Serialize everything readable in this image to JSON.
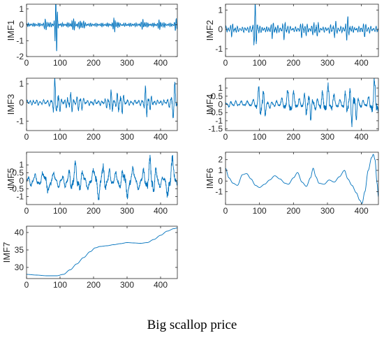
{
  "caption": "Big scallop price",
  "colors": {
    "line": "#0072BD",
    "axis": "#262626"
  },
  "chart_data": [
    {
      "type": "line",
      "ylabel": "IMF1",
      "xlim": [
        0,
        450
      ],
      "ylim": [
        -2,
        1.3
      ],
      "xticks": [
        0,
        100,
        200,
        300,
        400
      ],
      "yticks": [
        1,
        0,
        -1,
        -2
      ],
      "signal": {
        "kind": "osc",
        "period": 5,
        "base": 0.12,
        "bursts": [
          [
            88,
            2.0,
            5
          ],
          [
            60,
            0.3,
            8
          ],
          [
            140,
            0.3,
            10
          ],
          [
            165,
            0.45,
            6
          ],
          [
            265,
            0.55,
            6
          ],
          [
            350,
            0.4,
            6
          ],
          [
            400,
            0.25,
            8
          ],
          [
            445,
            0.3,
            6
          ]
        ]
      },
      "x": [
        0,
        88,
        89,
        165,
        265,
        350,
        450
      ],
      "y": [
        0,
        1.2,
        -2,
        0.45,
        0.55,
        0.4,
        0
      ]
    },
    {
      "type": "line",
      "ylabel": "IMF2",
      "xlim": [
        0,
        450
      ],
      "ylim": [
        -1.4,
        1.3
      ],
      "xticks": [
        0,
        100,
        200,
        300,
        400
      ],
      "yticks": [
        1,
        0,
        -1
      ],
      "signal": {
        "kind": "osc",
        "period": 7,
        "base": 0.15,
        "bursts": [
          [
            88,
            1.15,
            8
          ],
          [
            20,
            0.2,
            10
          ],
          [
            140,
            0.3,
            10
          ],
          [
            175,
            0.4,
            8
          ],
          [
            230,
            0.4,
            10
          ],
          [
            265,
            0.5,
            8
          ],
          [
            320,
            0.35,
            10
          ],
          [
            360,
            0.55,
            8
          ],
          [
            410,
            0.25,
            10
          ]
        ]
      },
      "x": [
        0,
        88,
        89,
        265,
        360,
        450
      ],
      "y": [
        0,
        1.1,
        -1.3,
        0.5,
        0.55,
        0
      ]
    },
    {
      "type": "line",
      "ylabel": "IMF3",
      "xlim": [
        0,
        450
      ],
      "ylim": [
        -1.5,
        1.3
      ],
      "xticks": [
        0,
        100,
        200,
        300,
        400
      ],
      "yticks": [
        1,
        0,
        -1
      ],
      "signal": {
        "kind": "osc",
        "period": 10,
        "base": 0.15,
        "bursts": [
          [
            88,
            1.3,
            10
          ],
          [
            130,
            0.5,
            10
          ],
          [
            160,
            0.55,
            8
          ],
          [
            250,
            0.6,
            10
          ],
          [
            280,
            0.75,
            10
          ],
          [
            360,
            0.9,
            10
          ],
          [
            440,
            1.1,
            10
          ]
        ]
      },
      "x": [
        0,
        88,
        89,
        280,
        360,
        440,
        450
      ],
      "y": [
        0,
        1.2,
        -1.3,
        0.75,
        0.9,
        1.1,
        -1.3
      ]
    },
    {
      "type": "line",
      "ylabel": "IMF4",
      "xlim": [
        0,
        450
      ],
      "ylim": [
        -1.6,
        1.6
      ],
      "xticks": [
        0,
        100,
        200,
        300,
        400
      ],
      "yticks": [
        1,
        0.5,
        0,
        -0.5,
        -1,
        -1.5
      ],
      "signal": {
        "kind": "osc",
        "period": 15,
        "base": 0.2,
        "bursts": [
          [
            105,
            1.2,
            14
          ],
          [
            190,
            0.8,
            20
          ],
          [
            245,
            0.9,
            16
          ],
          [
            300,
            1.0,
            20
          ],
          [
            370,
            1.2,
            20
          ],
          [
            440,
            1.4,
            15
          ]
        ]
      },
      "x": [
        0,
        105,
        245,
        370,
        440,
        450
      ],
      "y": [
        0,
        1.2,
        0.9,
        1.2,
        1.4,
        -1.5
      ]
    },
    {
      "type": "line",
      "ylabel": "IMF5",
      "xlim": [
        0,
        450
      ],
      "ylim": [
        -1.5,
        1.8
      ],
      "xticks": [
        0,
        100,
        200,
        300,
        400
      ],
      "yticks": [
        1,
        0.5,
        0,
        -0.5,
        -1
      ],
      "signal": {
        "kind": "osc",
        "period": 24,
        "base": 0.4,
        "bursts": [
          [
            60,
            0.6,
            20
          ],
          [
            150,
            0.8,
            25
          ],
          [
            220,
            0.9,
            25
          ],
          [
            300,
            0.8,
            25
          ],
          [
            370,
            1.1,
            20
          ],
          [
            430,
            1.4,
            12
          ]
        ]
      },
      "x": [
        0,
        60,
        150,
        220,
        300,
        370,
        430,
        450
      ],
      "y": [
        0,
        0.6,
        0.8,
        0.9,
        0.8,
        1.1,
        1.7,
        -1.3
      ]
    },
    {
      "type": "line",
      "ylabel": "IMF6",
      "xlim": [
        0,
        450
      ],
      "ylim": [
        -2.2,
        2.7
      ],
      "xticks": [
        0,
        100,
        200,
        300,
        400
      ],
      "yticks": [
        2,
        1,
        0,
        -1
      ],
      "signal": {
        "kind": "pts",
        "pts": [
          [
            0,
            1.2
          ],
          [
            10,
            0.3
          ],
          [
            22,
            -0.2
          ],
          [
            35,
            -0.4
          ],
          [
            50,
            0.6
          ],
          [
            62,
            0.7
          ],
          [
            75,
            0.2
          ],
          [
            88,
            -0.4
          ],
          [
            100,
            -0.6
          ],
          [
            115,
            -0.3
          ],
          [
            130,
            0.1
          ],
          [
            145,
            0.5
          ],
          [
            160,
            0.2
          ],
          [
            175,
            -0.2
          ],
          [
            185,
            -0.3
          ],
          [
            200,
            0.3
          ],
          [
            212,
            0.8
          ],
          [
            225,
            -0.1
          ],
          [
            238,
            -0.5
          ],
          [
            250,
            0.3
          ],
          [
            258,
            1.2
          ],
          [
            266,
            0.4
          ],
          [
            275,
            -0.2
          ],
          [
            290,
            -0.3
          ],
          [
            305,
            0.1
          ],
          [
            320,
            -0.1
          ],
          [
            335,
            0.4
          ],
          [
            350,
            1.0
          ],
          [
            360,
            0.2
          ],
          [
            372,
            -0.4
          ],
          [
            385,
            -1.1
          ],
          [
            395,
            -1.8
          ],
          [
            402,
            -2.1
          ],
          [
            410,
            -1.0
          ],
          [
            420,
            1.0
          ],
          [
            430,
            2.2
          ],
          [
            435,
            2.5
          ],
          [
            440,
            2.0
          ],
          [
            446,
            -0.2
          ],
          [
            450,
            -1.5
          ]
        ]
      },
      "x": [
        0,
        258,
        350,
        402,
        435,
        450
      ],
      "y": [
        1.2,
        1.2,
        1.0,
        -2.1,
        2.5,
        -1.5
      ]
    },
    {
      "type": "line",
      "ylabel": "IMF7",
      "xlim": [
        0,
        450
      ],
      "ylim": [
        26.8,
        41.8
      ],
      "xticks": [
        0,
        100,
        200,
        300,
        400
      ],
      "yticks": [
        40,
        35,
        30
      ],
      "signal": {
        "kind": "pts",
        "pts": [
          [
            0,
            28.0
          ],
          [
            30,
            27.8
          ],
          [
            60,
            27.6
          ],
          [
            90,
            27.6
          ],
          [
            110,
            28.0
          ],
          [
            130,
            29.3
          ],
          [
            150,
            31.0
          ],
          [
            170,
            32.8
          ],
          [
            190,
            34.5
          ],
          [
            205,
            35.6
          ],
          [
            220,
            36.0
          ],
          [
            240,
            36.2
          ],
          [
            260,
            36.5
          ],
          [
            280,
            36.8
          ],
          [
            300,
            37.1
          ],
          [
            320,
            37.0
          ],
          [
            340,
            36.9
          ],
          [
            360,
            37.1
          ],
          [
            380,
            38.0
          ],
          [
            400,
            39.2
          ],
          [
            420,
            40.4
          ],
          [
            440,
            41.1
          ],
          [
            450,
            41.3
          ]
        ]
      },
      "x": [
        0,
        90,
        200,
        300,
        450
      ],
      "y": [
        28.0,
        27.6,
        35.3,
        37.1,
        41.3
      ]
    }
  ]
}
